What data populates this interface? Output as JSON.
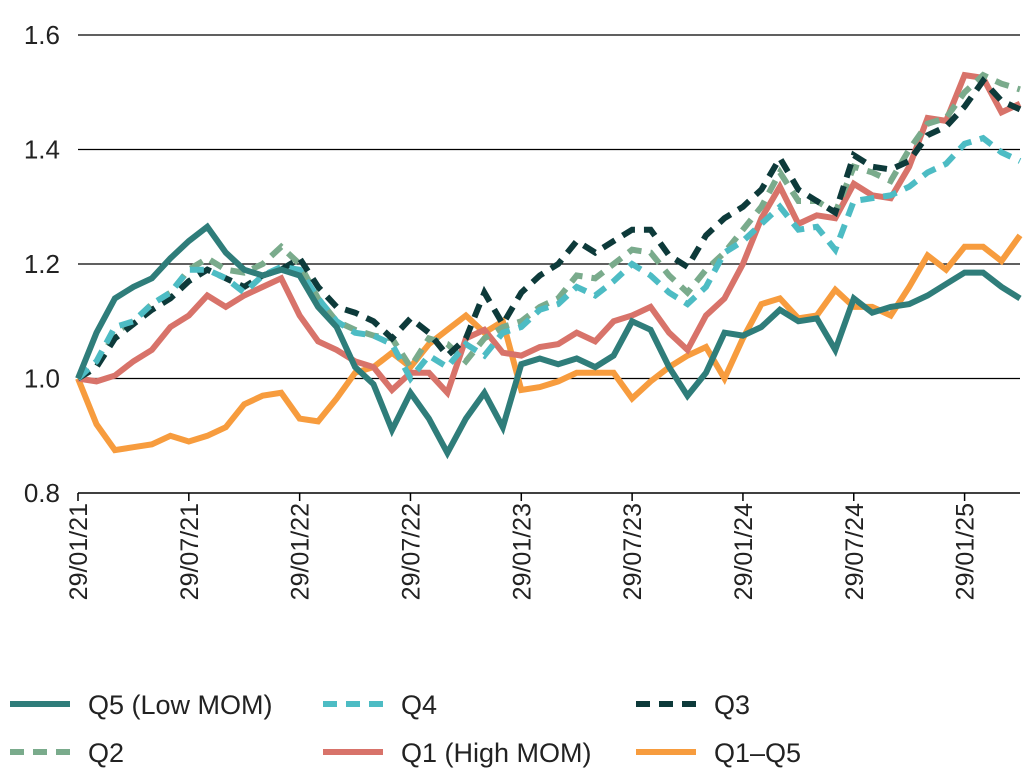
{
  "chart_data": {
    "type": "line",
    "title": "",
    "xlabel": "",
    "ylabel": "",
    "ylim": [
      0.8,
      1.6
    ],
    "yticks": [
      "0.8",
      "1.0",
      "1.2",
      "1.4",
      "1.6"
    ],
    "xticks": [
      "29/01/21",
      "29/07/21",
      "29/01/22",
      "29/07/22",
      "29/01/23",
      "29/07/23",
      "29/01/24",
      "29/07/24",
      "29/01/25"
    ],
    "grid": "horizontal",
    "legend_position": "bottom",
    "x": [
      "2021-01",
      "2021-02",
      "2021-03",
      "2021-04",
      "2021-05",
      "2021-06",
      "2021-07",
      "2021-08",
      "2021-09",
      "2021-10",
      "2021-11",
      "2021-12",
      "2022-01",
      "2022-02",
      "2022-03",
      "2022-04",
      "2022-05",
      "2022-06",
      "2022-07",
      "2022-08",
      "2022-09",
      "2022-10",
      "2022-11",
      "2022-12",
      "2023-01",
      "2023-02",
      "2023-03",
      "2023-04",
      "2023-05",
      "2023-06",
      "2023-07",
      "2023-08",
      "2023-09",
      "2023-10",
      "2023-11",
      "2023-12",
      "2024-01",
      "2024-02",
      "2024-03",
      "2024-04",
      "2024-05",
      "2024-06",
      "2024-07",
      "2024-08",
      "2024-09",
      "2024-10",
      "2024-11",
      "2024-12",
      "2025-01",
      "2025-02",
      "2025-03",
      "2025-04"
    ],
    "series": [
      {
        "name": "Q5 (Low MOM)",
        "color": "#2f7d7a",
        "dash": "solid",
        "values": [
          1.0,
          1.08,
          1.14,
          1.16,
          1.175,
          1.21,
          1.24,
          1.265,
          1.22,
          1.19,
          1.18,
          1.19,
          1.18,
          1.125,
          1.09,
          1.02,
          0.99,
          0.91,
          0.975,
          0.93,
          0.87,
          0.93,
          0.975,
          0.915,
          1.025,
          1.035,
          1.025,
          1.035,
          1.02,
          1.04,
          1.1,
          1.085,
          1.02,
          0.97,
          1.01,
          1.08,
          1.075,
          1.09,
          1.12,
          1.1,
          1.105,
          1.05,
          1.14,
          1.115,
          1.125,
          1.13,
          1.145,
          1.165,
          1.185,
          1.185,
          1.16,
          1.14
        ]
      },
      {
        "name": "Q4",
        "color": "#4dbcc4",
        "dash": "dashed",
        "values": [
          1.0,
          1.03,
          1.09,
          1.1,
          1.13,
          1.15,
          1.19,
          1.19,
          1.175,
          1.15,
          1.18,
          1.195,
          1.19,
          1.14,
          1.1,
          1.08,
          1.075,
          1.06,
          1.0,
          1.04,
          1.02,
          1.06,
          1.04,
          1.08,
          1.09,
          1.12,
          1.13,
          1.16,
          1.145,
          1.17,
          1.2,
          1.18,
          1.15,
          1.13,
          1.16,
          1.22,
          1.24,
          1.27,
          1.3,
          1.26,
          1.265,
          1.225,
          1.31,
          1.315,
          1.32,
          1.335,
          1.36,
          1.375,
          1.41,
          1.42,
          1.395,
          1.38
        ]
      },
      {
        "name": "Q3",
        "color": "#0d3a3a",
        "dash": "dashed",
        "values": [
          1.0,
          1.02,
          1.07,
          1.095,
          1.12,
          1.14,
          1.17,
          1.19,
          1.175,
          1.16,
          1.18,
          1.19,
          1.21,
          1.16,
          1.125,
          1.115,
          1.1,
          1.07,
          1.105,
          1.08,
          1.04,
          1.07,
          1.15,
          1.095,
          1.15,
          1.18,
          1.2,
          1.24,
          1.22,
          1.24,
          1.26,
          1.26,
          1.215,
          1.195,
          1.25,
          1.28,
          1.3,
          1.33,
          1.385,
          1.33,
          1.31,
          1.29,
          1.39,
          1.37,
          1.365,
          1.38,
          1.425,
          1.44,
          1.475,
          1.52,
          1.485,
          1.47
        ]
      },
      {
        "name": "Q2",
        "color": "#7aab8c",
        "dash": "dashed",
        "values": [
          1.0,
          1.02,
          1.08,
          1.1,
          1.13,
          1.15,
          1.19,
          1.21,
          1.19,
          1.185,
          1.2,
          1.23,
          1.2,
          1.14,
          1.1,
          1.085,
          1.075,
          1.07,
          1.02,
          1.07,
          1.06,
          1.03,
          1.07,
          1.09,
          1.1,
          1.125,
          1.14,
          1.18,
          1.175,
          1.2,
          1.225,
          1.22,
          1.18,
          1.15,
          1.19,
          1.22,
          1.26,
          1.3,
          1.36,
          1.31,
          1.31,
          1.29,
          1.37,
          1.36,
          1.345,
          1.4,
          1.445,
          1.455,
          1.5,
          1.53,
          1.515,
          1.505
        ]
      },
      {
        "name": "Q1 (High MOM)",
        "color": "#d8736a",
        "dash": "solid",
        "values": [
          1.0,
          0.995,
          1.005,
          1.03,
          1.05,
          1.09,
          1.11,
          1.145,
          1.125,
          1.145,
          1.16,
          1.175,
          1.11,
          1.065,
          1.05,
          1.03,
          1.02,
          0.98,
          1.01,
          1.01,
          0.975,
          1.07,
          1.085,
          1.045,
          1.04,
          1.055,
          1.06,
          1.08,
          1.065,
          1.1,
          1.11,
          1.125,
          1.08,
          1.05,
          1.11,
          1.14,
          1.2,
          1.28,
          1.335,
          1.27,
          1.285,
          1.28,
          1.34,
          1.32,
          1.315,
          1.37,
          1.455,
          1.45,
          1.53,
          1.525,
          1.465,
          1.48
        ]
      },
      {
        "name": "Q1–Q5",
        "color": "#f79c3e",
        "dash": "solid",
        "values": [
          1.0,
          0.92,
          0.875,
          0.88,
          0.885,
          0.9,
          0.89,
          0.9,
          0.915,
          0.955,
          0.97,
          0.975,
          0.93,
          0.925,
          0.965,
          1.01,
          1.02,
          1.045,
          1.02,
          1.06,
          1.085,
          1.11,
          1.08,
          1.1,
          0.98,
          0.985,
          0.995,
          1.01,
          1.01,
          1.01,
          0.965,
          0.995,
          1.02,
          1.04,
          1.055,
          1.0,
          1.07,
          1.13,
          1.14,
          1.105,
          1.11,
          1.155,
          1.125,
          1.125,
          1.11,
          1.16,
          1.215,
          1.19,
          1.23,
          1.23,
          1.205,
          1.25
        ]
      }
    ]
  }
}
